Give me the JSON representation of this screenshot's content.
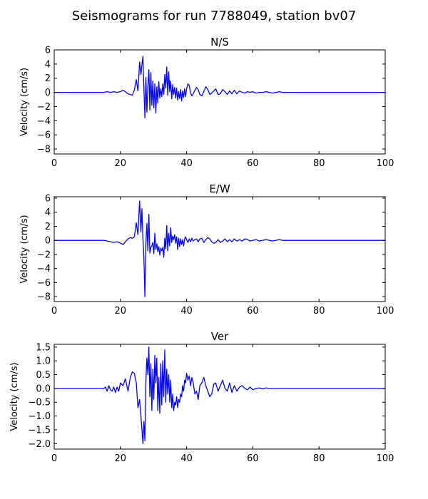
{
  "figure": {
    "title": "Seismograms for run 7788049, station bv07"
  },
  "style": {
    "line_color": "#0000ff",
    "axis_color": "#000000",
    "background": "#ffffff"
  },
  "chart_data": [
    {
      "type": "line",
      "title": "N/S",
      "xlabel": "",
      "ylabel": "Velocity (cm/s)",
      "xlim": [
        0,
        100
      ],
      "ylim": [
        -8.7,
        6
      ],
      "xticks": [
        0,
        20,
        40,
        60,
        80,
        100
      ],
      "yticks": [
        6,
        4,
        2,
        0,
        -2,
        -4,
        -6,
        -8
      ],
      "yticklabels": [
        "6",
        "4",
        "2",
        "0",
        "−2",
        "−4",
        "−6",
        "−8"
      ],
      "grid": false,
      "series": [
        {
          "color": "#0000ff",
          "x": [
            0,
            15,
            16,
            17,
            18,
            19,
            20,
            20.8,
            21.5,
            22.3,
            23,
            23.6,
            24.2,
            24.8,
            25.3,
            25.8,
            26.2,
            26.5,
            26.8,
            27.1,
            27.4,
            27.7,
            28,
            28.3,
            28.6,
            28.9,
            29.2,
            29.5,
            29.8,
            30.1,
            30.4,
            30.7,
            31,
            31.3,
            31.6,
            31.9,
            32.2,
            32.5,
            32.8,
            33.1,
            33.4,
            33.7,
            34,
            34.3,
            34.6,
            34.9,
            35.2,
            35.5,
            35.8,
            36.1,
            36.4,
            36.7,
            37,
            37.3,
            37.6,
            37.9,
            38.2,
            38.5,
            38.8,
            39.1,
            39.4,
            39.7,
            40,
            40.4,
            40.8,
            41.2,
            41.6,
            42,
            42.5,
            43,
            43.5,
            44,
            44.6,
            45.2,
            45.8,
            46.4,
            47,
            47.6,
            48.2,
            48.8,
            49.5,
            50.2,
            50.9,
            51.6,
            52.3,
            53,
            53.7,
            54.4,
            55.2,
            56,
            56.8,
            57.6,
            58.4,
            59.2,
            60,
            61,
            62,
            63,
            64,
            65,
            66,
            67,
            68,
            69,
            70,
            72,
            74,
            76,
            78,
            80,
            85,
            90,
            95,
            100
          ],
          "values": [
            0,
            0,
            0.1,
            0,
            0.1,
            0,
            0.1,
            0.3,
            0.1,
            -0.2,
            -0.3,
            -0.4,
            0.3,
            1.8,
            0.2,
            4.3,
            2.5,
            3.9,
            5.1,
            0.5,
            -3.6,
            2.1,
            -2.8,
            0.9,
            3.2,
            -2.5,
            2.8,
            -1.8,
            1.6,
            -2.2,
            1.2,
            -2.9,
            0.8,
            -1.5,
            1.5,
            -0.8,
            0.5,
            -0.6,
            1.2,
            -0.3,
            2.5,
            0.6,
            3.6,
            -0.4,
            2.9,
            0.1,
            1.6,
            -0.9,
            1.1,
            -0.3,
            0.7,
            -0.8,
            0.6,
            -1.1,
            0.1,
            -0.9,
            0.4,
            -1.2,
            0.2,
            -0.7,
            0.5,
            -0.6,
            0.5,
            1.2,
            1.0,
            -0.1,
            -0.5,
            -0.2,
            0.3,
            0.7,
            0.4,
            -0.3,
            -0.5,
            0.1,
            0.8,
            0.4,
            -0.3,
            -0.1,
            0.2,
            0.5,
            -0.3,
            -0.2,
            0.4,
            0.1,
            -0.3,
            0.2,
            -0.2,
            0.3,
            -0.2,
            0.2,
            0.0,
            -0.1,
            0.1,
            0.0,
            0.1,
            -0.1,
            0,
            0,
            0.1,
            0,
            -0.1,
            0,
            0.1,
            0,
            0,
            0,
            0,
            0,
            0,
            0,
            0,
            0,
            0,
            0
          ]
        }
      ]
    },
    {
      "type": "line",
      "title": "E/W",
      "xlabel": "",
      "ylabel": "Velocity (cm/s)",
      "xlim": [
        0,
        100
      ],
      "ylim": [
        -8.7,
        6.2
      ],
      "xticks": [
        0,
        20,
        40,
        60,
        80,
        100
      ],
      "yticks": [
        6,
        4,
        2,
        0,
        -2,
        -4,
        -6,
        -8
      ],
      "yticklabels": [
        "6",
        "4",
        "2",
        "0",
        "−2",
        "−4",
        "−6",
        "−8"
      ],
      "grid": false,
      "series": [
        {
          "color": "#0000ff",
          "x": [
            0,
            15,
            16,
            17,
            18,
            19,
            20,
            20.8,
            21.5,
            22.3,
            23,
            23.6,
            24.2,
            24.8,
            25.3,
            25.8,
            26.2,
            26.5,
            26.8,
            27.1,
            27.4,
            27.7,
            28,
            28.3,
            28.6,
            28.9,
            29.2,
            29.5,
            29.8,
            30.1,
            30.4,
            30.7,
            31,
            31.3,
            31.6,
            31.9,
            32.2,
            32.5,
            32.8,
            33.1,
            33.4,
            33.7,
            34,
            34.3,
            34.6,
            34.9,
            35.2,
            35.5,
            35.8,
            36.1,
            36.4,
            36.7,
            37,
            37.3,
            37.6,
            37.9,
            38.2,
            38.5,
            38.8,
            39.1,
            39.4,
            39.7,
            40,
            40.4,
            40.8,
            41.2,
            41.6,
            42,
            42.5,
            43,
            43.5,
            44,
            44.6,
            45.2,
            45.8,
            46.4,
            47,
            47.6,
            48.2,
            48.8,
            49.5,
            50.2,
            50.9,
            51.6,
            52.3,
            53,
            53.7,
            54.4,
            55.2,
            56,
            56.8,
            57.6,
            58.4,
            59.2,
            60,
            61,
            62,
            63,
            64,
            65,
            66,
            67,
            68,
            69,
            70,
            72,
            74,
            76,
            78,
            80,
            85,
            90,
            95,
            100
          ],
          "values": [
            0,
            0,
            -0.1,
            -0.2,
            -0.3,
            -0.2,
            -0.4,
            -0.6,
            -0.2,
            0.2,
            0.4,
            0.3,
            0.5,
            2.5,
            0.8,
            5.6,
            1.2,
            4.5,
            0.3,
            -2.5,
            -8.0,
            -0.4,
            2.4,
            -1.5,
            3.7,
            -1.8,
            -1.0,
            -0.8,
            -0.3,
            -1.9,
            1.0,
            -1.3,
            -0.5,
            -1.6,
            -0.9,
            -2.1,
            -1.1,
            -1.5,
            -1.0,
            -2.4,
            0.3,
            -1.2,
            2.1,
            -1.5,
            1.0,
            -0.8,
            1.8,
            -0.3,
            0.6,
            0.1,
            0.8,
            -0.4,
            0.5,
            -1.3,
            0.3,
            -0.9,
            0.2,
            -0.6,
            0.1,
            -0.8,
            0.2,
            0.5,
            0.1,
            -0.3,
            0.2,
            -0.2,
            0.3,
            -0.1,
            0.1,
            0.2,
            -0.2,
            0.2,
            0.3,
            -0.3,
            0.1,
            0.4,
            0.2,
            -0.2,
            -0.4,
            -0.3,
            0.1,
            -0.3,
            -0.1,
            0.2,
            -0.2,
            0.1,
            -0.2,
            0.2,
            -0.1,
            0.1,
            -0.1,
            0.2,
            0.1,
            -0.1,
            0.0,
            0.1,
            -0.1,
            0,
            0.1,
            0,
            -0.1,
            0,
            0.1,
            0,
            0,
            0,
            0,
            0,
            0,
            0,
            0,
            0,
            0,
            0
          ]
        }
      ]
    },
    {
      "type": "line",
      "title": "Ver",
      "xlabel": "",
      "ylabel": "Velocity (cm/s)",
      "xlim": [
        0,
        100
      ],
      "ylim": [
        -2.2,
        1.6
      ],
      "xticks": [
        0,
        20,
        40,
        60,
        80,
        100
      ],
      "yticks": [
        1.5,
        1.0,
        0.5,
        0.0,
        -0.5,
        -1.0,
        -1.5,
        -2.0
      ],
      "yticklabels": [
        "1.5",
        "1.0",
        "0.5",
        "0.0",
        "−0.5",
        "−1.0",
        "−1.5",
        "−2.0"
      ],
      "grid": false,
      "series": [
        {
          "color": "#0000ff",
          "x": [
            0,
            15,
            15.5,
            16,
            16.5,
            17,
            17.5,
            18,
            18.5,
            19,
            19.5,
            20,
            20.8,
            21.5,
            22.3,
            23,
            23.6,
            24.2,
            24.8,
            25.3,
            25.8,
            26.2,
            26.5,
            26.8,
            27.1,
            27.4,
            27.7,
            28,
            28.3,
            28.6,
            28.9,
            29.2,
            29.5,
            29.8,
            30.1,
            30.4,
            30.7,
            31,
            31.3,
            31.6,
            31.9,
            32.2,
            32.5,
            32.8,
            33.1,
            33.4,
            33.7,
            34,
            34.3,
            34.6,
            34.9,
            35.2,
            35.5,
            35.8,
            36.1,
            36.4,
            36.7,
            37,
            37.3,
            37.6,
            37.9,
            38.2,
            38.5,
            38.8,
            39.1,
            39.4,
            39.7,
            40,
            40.4,
            40.8,
            41.2,
            41.6,
            42,
            42.5,
            43,
            43.5,
            44,
            44.6,
            45.2,
            45.8,
            46.4,
            47,
            47.6,
            48.2,
            48.8,
            49.5,
            50.2,
            50.9,
            51.6,
            52.3,
            53,
            53.7,
            54.4,
            55.2,
            56,
            56.8,
            57.6,
            58.4,
            59.2,
            60,
            61,
            62,
            63,
            64,
            65,
            66,
            67,
            68,
            69,
            70,
            72,
            74,
            76,
            78,
            80,
            85,
            90,
            95,
            100
          ],
          "values": [
            0,
            0,
            0.05,
            -0.1,
            0.1,
            -0.05,
            -0.1,
            0.05,
            -0.15,
            0.05,
            -0.1,
            0.2,
            0.1,
            0.35,
            -0.1,
            0.4,
            0.6,
            0.55,
            0.2,
            -0.7,
            -0.4,
            -1.0,
            -1.5,
            -2.0,
            -1.2,
            -1.9,
            0.3,
            1.1,
            0.5,
            1.5,
            -0.3,
            0.9,
            -0.8,
            0.7,
            -0.4,
            1.2,
            0.2,
            1.1,
            -0.8,
            0.4,
            -0.9,
            0.9,
            -0.6,
            1.0,
            -0.3,
            1.4,
            -0.5,
            0.7,
            -0.2,
            0.5,
            -0.5,
            0.3,
            -0.7,
            -0.2,
            -0.8,
            -0.5,
            -0.6,
            -0.3,
            -0.7,
            -0.4,
            -0.5,
            -0.2,
            -0.3,
            0.1,
            -0.1,
            0.3,
            0.2,
            0.55,
            0.3,
            0.45,
            0.1,
            0.4,
            0.2,
            -0.2,
            -0.1,
            -0.4,
            0.1,
            0.2,
            0.4,
            0.1,
            -0.1,
            -0.3,
            -0.2,
            0.15,
            0.2,
            -0.1,
            0.1,
            0.3,
            0.0,
            -0.1,
            0.2,
            -0.15,
            0.1,
            -0.1,
            0.05,
            0.1,
            0.0,
            -0.05,
            0.05,
            -0.05,
            0.0,
            0.02,
            -0.02,
            0.02,
            0,
            0,
            0,
            0,
            0,
            0,
            0,
            0,
            0,
            0,
            0,
            0,
            0,
            0,
            0
          ]
        }
      ]
    }
  ]
}
